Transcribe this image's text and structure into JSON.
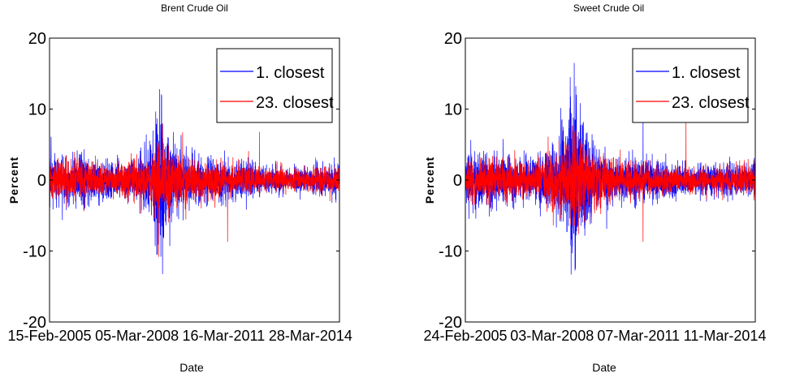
{
  "colors": {
    "series_1": "#0000ff",
    "series_2": "#ff0000",
    "axes": "#000000"
  },
  "chart_data": [
    {
      "type": "line",
      "title": "Brent Crude Oil",
      "xlabel": "Date",
      "ylabel": "Percent",
      "ylim": [
        -20,
        20
      ],
      "yticks": [
        -20,
        -10,
        0,
        10,
        20
      ],
      "xlim": [
        "2005-02-15",
        "2015-04-01"
      ],
      "xticks": [
        "15-Feb-2005",
        "05-Mar-2008",
        "16-Mar-2011",
        "28-Mar-2014"
      ],
      "xtick_dates": [
        "2005-02-15",
        "2008-03-05",
        "2011-03-16",
        "2014-03-28"
      ],
      "legend_position": "top-right",
      "grid": false,
      "series": [
        {
          "name": "1. closest",
          "amplitude_envelope": [
            {
              "date": "2005-02-15",
              "abs_percent": 4
            },
            {
              "date": "2006-06-01",
              "abs_percent": 3.5
            },
            {
              "date": "2007-06-01",
              "abs_percent": 2.5
            },
            {
              "date": "2008-03-01",
              "abs_percent": 3
            },
            {
              "date": "2008-09-15",
              "abs_percent": 6
            },
            {
              "date": "2008-12-01",
              "abs_percent": 12
            },
            {
              "date": "2009-03-01",
              "abs_percent": 8
            },
            {
              "date": "2009-08-01",
              "abs_percent": 4
            },
            {
              "date": "2010-06-01",
              "abs_percent": 3
            },
            {
              "date": "2012-01-01",
              "abs_percent": 2.5
            },
            {
              "date": "2013-06-01",
              "abs_percent": 1.5
            },
            {
              "date": "2015-04-01",
              "abs_percent": 2.5
            }
          ],
          "peaks": [
            {
              "date": "2008-12-20",
              "value": 12.8
            },
            {
              "date": "2009-01-05",
              "value": -10.8
            },
            {
              "date": "2008-11-20",
              "value": -10.5
            }
          ]
        },
        {
          "name": "23. closest",
          "amplitude_envelope": [
            {
              "date": "2005-02-15",
              "abs_percent": 3
            },
            {
              "date": "2006-06-01",
              "abs_percent": 2.8
            },
            {
              "date": "2007-06-01",
              "abs_percent": 2
            },
            {
              "date": "2008-09-15",
              "abs_percent": 4
            },
            {
              "date": "2008-12-01",
              "abs_percent": 7
            },
            {
              "date": "2009-06-01",
              "abs_percent": 4
            },
            {
              "date": "2010-06-01",
              "abs_percent": 2.5
            },
            {
              "date": "2013-06-01",
              "abs_percent": 1.5
            },
            {
              "date": "2015-04-01",
              "abs_percent": 2
            }
          ],
          "peaks": [
            {
              "date": "2011-05-05",
              "value": -8.7
            },
            {
              "date": "2012-06-15",
              "value": 6.8
            }
          ]
        }
      ]
    },
    {
      "type": "line",
      "title": "Sweet Crude Oil",
      "xlabel": "Date",
      "ylabel": "Percent",
      "ylim": [
        -20,
        20
      ],
      "yticks": [
        -20,
        -10,
        0,
        10,
        20
      ],
      "xlim": [
        "2005-02-24",
        "2015-04-01"
      ],
      "xticks": [
        "24-Feb-2005",
        "03-Mar-2008",
        "07-Mar-2011",
        "11-Mar-2014"
      ],
      "xtick_dates": [
        "2005-02-24",
        "2008-03-03",
        "2011-03-07",
        "2014-03-11"
      ],
      "legend_position": "top-right",
      "grid": false,
      "series": [
        {
          "name": "1. closest",
          "amplitude_envelope": [
            {
              "date": "2005-02-24",
              "abs_percent": 4
            },
            {
              "date": "2006-06-01",
              "abs_percent": 3.5
            },
            {
              "date": "2007-06-01",
              "abs_percent": 3
            },
            {
              "date": "2008-03-01",
              "abs_percent": 4
            },
            {
              "date": "2008-09-15",
              "abs_percent": 8
            },
            {
              "date": "2008-12-01",
              "abs_percent": 14
            },
            {
              "date": "2009-03-01",
              "abs_percent": 10
            },
            {
              "date": "2009-08-01",
              "abs_percent": 5
            },
            {
              "date": "2010-06-01",
              "abs_percent": 3
            },
            {
              "date": "2012-01-01",
              "abs_percent": 2.5
            },
            {
              "date": "2013-06-01",
              "abs_percent": 2
            },
            {
              "date": "2015-04-01",
              "abs_percent": 2.5
            }
          ],
          "peaks": [
            {
              "date": "2008-12-10",
              "value": 16.5
            },
            {
              "date": "2008-10-20",
              "value": 14.5
            },
            {
              "date": "2008-12-25",
              "value": -12.5
            },
            {
              "date": "2011-05-05",
              "value": 8.5
            }
          ]
        },
        {
          "name": "23. closest",
          "amplitude_envelope": [
            {
              "date": "2005-02-24",
              "abs_percent": 3
            },
            {
              "date": "2006-06-01",
              "abs_percent": 2.8
            },
            {
              "date": "2007-06-01",
              "abs_percent": 2.2
            },
            {
              "date": "2008-09-15",
              "abs_percent": 5
            },
            {
              "date": "2008-12-01",
              "abs_percent": 8
            },
            {
              "date": "2009-06-01",
              "abs_percent": 4
            },
            {
              "date": "2010-06-01",
              "abs_percent": 2.5
            },
            {
              "date": "2013-06-01",
              "abs_percent": 1.5
            },
            {
              "date": "2015-04-01",
              "abs_percent": 2
            }
          ],
          "peaks": [
            {
              "date": "2011-05-05",
              "value": -8.7
            },
            {
              "date": "2012-11-01",
              "value": 8.4
            }
          ]
        }
      ]
    }
  ]
}
